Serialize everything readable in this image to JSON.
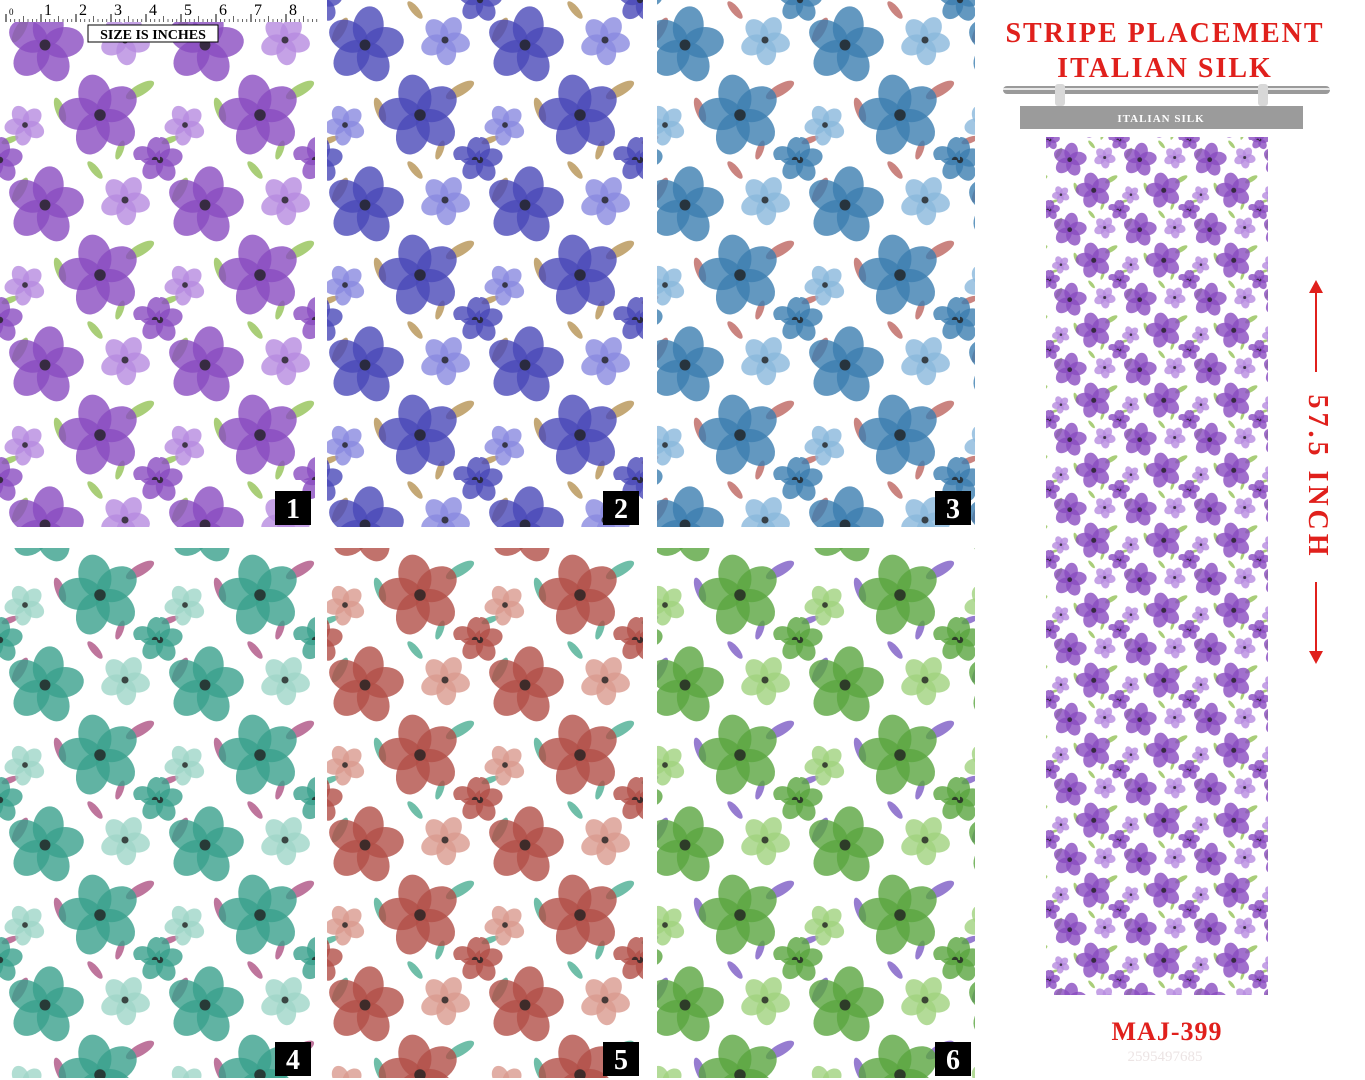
{
  "ruler": {
    "numbers": [
      "0",
      "1",
      "2",
      "3",
      "4",
      "5",
      "6",
      "7",
      "8"
    ],
    "caption": "SIZE IS INCHES"
  },
  "panels": [
    {
      "label": "1"
    },
    {
      "label": "2"
    },
    {
      "label": "3"
    },
    {
      "label": "4"
    },
    {
      "label": "5"
    },
    {
      "label": "6"
    }
  ],
  "header": {
    "line1": "STRIPE PLACEMENT",
    "line2": "ITALIAN SILK"
  },
  "banner": "ITALIAN SILK",
  "length": "57.5 INCH",
  "code": "MAJ-399",
  "id": "2595497685"
}
